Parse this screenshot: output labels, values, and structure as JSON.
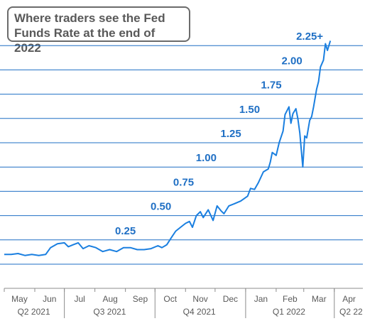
{
  "chart_data": {
    "type": "line",
    "title": [
      "Where traders see the Fed",
      "Funds Rate at the end of 2022"
    ],
    "xlabel": "",
    "ylabel": "",
    "x_range": [
      "2021-05-01",
      "2022-04-30"
    ],
    "y_range": [
      0.0,
      2.35
    ],
    "grid": true,
    "gridlines": [
      0.0,
      0.25,
      0.5,
      0.75,
      1.0,
      1.25,
      1.5,
      1.75,
      2.0,
      2.25
    ],
    "month_ticks": [
      "May",
      "Jun",
      "Jul",
      "Aug",
      "Sep",
      "Oct",
      "Nov",
      "Dec",
      "Jan",
      "Feb",
      "Mar",
      "Apr"
    ],
    "quarter_ticks": [
      "Q2 2021",
      "Q3 2021",
      "Q4 2021",
      "Q1 2022",
      "Q2 22"
    ],
    "level_labels": [
      {
        "value": 0.25,
        "text": "0.25"
      },
      {
        "value": 0.5,
        "text": "0.50"
      },
      {
        "value": 0.75,
        "text": "0.75"
      },
      {
        "value": 1.0,
        "text": "1.00"
      },
      {
        "value": 1.25,
        "text": "1.25"
      },
      {
        "value": 1.5,
        "text": "1.50"
      },
      {
        "value": 1.75,
        "text": "1.75"
      },
      {
        "value": 2.0,
        "text": "2.00"
      },
      {
        "value": 2.25,
        "text": "2.25+"
      }
    ],
    "line_color": "#1a7fe0",
    "label_color": "#1f6fc4",
    "grid_color": "#1f6fc4",
    "series": [
      {
        "points": [
          [
            "2021-05-01",
            0.1
          ],
          [
            "2021-05-08",
            0.1
          ],
          [
            "2021-05-15",
            0.11
          ],
          [
            "2021-05-22",
            0.09
          ],
          [
            "2021-05-29",
            0.1
          ],
          [
            "2021-06-05",
            0.09
          ],
          [
            "2021-06-12",
            0.1
          ],
          [
            "2021-06-17",
            0.17
          ],
          [
            "2021-06-24",
            0.21
          ],
          [
            "2021-07-01",
            0.22
          ],
          [
            "2021-07-05",
            0.18
          ],
          [
            "2021-07-10",
            0.2
          ],
          [
            "2021-07-15",
            0.22
          ],
          [
            "2021-07-20",
            0.16
          ],
          [
            "2021-07-26",
            0.19
          ],
          [
            "2021-08-02",
            0.17
          ],
          [
            "2021-08-09",
            0.13
          ],
          [
            "2021-08-16",
            0.15
          ],
          [
            "2021-08-23",
            0.13
          ],
          [
            "2021-08-30",
            0.17
          ],
          [
            "2021-09-06",
            0.17
          ],
          [
            "2021-09-13",
            0.15
          ],
          [
            "2021-09-20",
            0.15
          ],
          [
            "2021-09-27",
            0.16
          ],
          [
            "2021-10-04",
            0.19
          ],
          [
            "2021-10-08",
            0.17
          ],
          [
            "2021-10-13",
            0.2
          ],
          [
            "2021-10-18",
            0.28
          ],
          [
            "2021-10-22",
            0.34
          ],
          [
            "2021-10-27",
            0.38
          ],
          [
            "2021-11-01",
            0.42
          ],
          [
            "2021-11-05",
            0.44
          ],
          [
            "2021-11-08",
            0.38
          ],
          [
            "2021-11-12",
            0.5
          ],
          [
            "2021-11-16",
            0.54
          ],
          [
            "2021-11-19",
            0.48
          ],
          [
            "2021-11-24",
            0.56
          ],
          [
            "2021-11-29",
            0.45
          ],
          [
            "2021-12-03",
            0.6
          ],
          [
            "2021-12-07",
            0.55
          ],
          [
            "2021-12-10",
            0.52
          ],
          [
            "2021-12-15",
            0.6
          ],
          [
            "2021-12-20",
            0.62
          ],
          [
            "2021-12-27",
            0.65
          ],
          [
            "2022-01-03",
            0.7
          ],
          [
            "2022-01-06",
            0.78
          ],
          [
            "2022-01-10",
            0.77
          ],
          [
            "2022-01-14",
            0.84
          ],
          [
            "2022-01-19",
            0.95
          ],
          [
            "2022-01-24",
            0.98
          ],
          [
            "2022-01-26",
            1.05
          ],
          [
            "2022-01-28",
            1.15
          ],
          [
            "2022-02-01",
            1.12
          ],
          [
            "2022-02-04",
            1.25
          ],
          [
            "2022-02-08",
            1.37
          ],
          [
            "2022-02-10",
            1.54
          ],
          [
            "2022-02-14",
            1.62
          ],
          [
            "2022-02-16",
            1.45
          ],
          [
            "2022-02-18",
            1.55
          ],
          [
            "2022-02-21",
            1.6
          ],
          [
            "2022-02-23",
            1.5
          ],
          [
            "2022-02-25",
            1.35
          ],
          [
            "2022-02-28",
            1.0
          ],
          [
            "2022-03-02",
            1.32
          ],
          [
            "2022-03-04",
            1.3
          ],
          [
            "2022-03-07",
            1.48
          ],
          [
            "2022-03-09",
            1.52
          ],
          [
            "2022-03-11",
            1.62
          ],
          [
            "2022-03-14",
            1.8
          ],
          [
            "2022-03-16",
            1.88
          ],
          [
            "2022-03-18",
            2.03
          ],
          [
            "2022-03-21",
            2.1
          ],
          [
            "2022-03-23",
            2.27
          ],
          [
            "2022-03-25",
            2.2
          ],
          [
            "2022-03-28",
            2.3
          ]
        ]
      }
    ]
  }
}
